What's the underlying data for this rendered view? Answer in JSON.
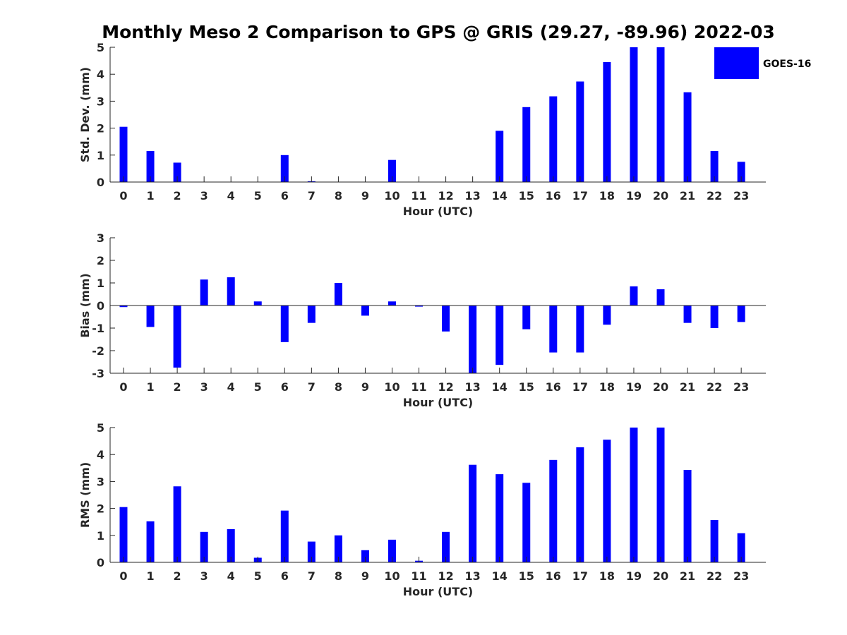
{
  "chart_data": {
    "title": "Monthly Meso 2 Comparison to GPS @ GRIS (29.27, -89.96) 2022-03",
    "type": "bar",
    "legend": {
      "label": "GOES-16",
      "placement": "top-right",
      "color": "#0000ff"
    },
    "bar_color": "#0000ff",
    "panels": [
      {
        "name": "std-dev",
        "type": "bar",
        "xlabel": "Hour (UTC)",
        "ylabel": "Std. Dev. (mm)",
        "ylim": [
          0,
          5
        ],
        "yticks": [
          0,
          1,
          2,
          3,
          4,
          5
        ],
        "categories": [
          "0",
          "1",
          "2",
          "3",
          "4",
          "5",
          "6",
          "7",
          "8",
          "9",
          "10",
          "11",
          "12",
          "13",
          "14",
          "15",
          "16",
          "17",
          "18",
          "19",
          "20",
          "21",
          "22",
          "23"
        ],
        "values": [
          2.05,
          1.15,
          0.72,
          0,
          0,
          0,
          1.0,
          0.03,
          0,
          0,
          0.82,
          0,
          0,
          0,
          1.9,
          2.78,
          3.18,
          3.73,
          4.45,
          5.0,
          5.0,
          3.33,
          1.15,
          0.75
        ],
        "legend": true
      },
      {
        "name": "bias",
        "type": "bar",
        "xlabel": "Hour (UTC)",
        "ylabel": "Bias (mm)",
        "ylim": [
          -3,
          3
        ],
        "yticks": [
          -3,
          -2,
          -1,
          0,
          1,
          2,
          3
        ],
        "categories": [
          "0",
          "1",
          "2",
          "3",
          "4",
          "5",
          "6",
          "7",
          "8",
          "9",
          "10",
          "11",
          "12",
          "13",
          "14",
          "15",
          "16",
          "17",
          "18",
          "19",
          "20",
          "21",
          "22",
          "23"
        ],
        "values": [
          -0.07,
          -0.95,
          -2.75,
          1.15,
          1.25,
          0.18,
          -1.62,
          -0.77,
          1.0,
          -0.45,
          0.18,
          -0.05,
          -1.15,
          -3.0,
          -2.63,
          -1.05,
          -2.08,
          -2.08,
          -0.85,
          0.85,
          0.72,
          -0.77,
          -1.0,
          -0.73
        ],
        "legend": false
      },
      {
        "name": "rms",
        "type": "bar",
        "xlabel": "Hour (UTC)",
        "ylabel": "RMS (mm)",
        "ylim": [
          0,
          5
        ],
        "yticks": [
          0,
          1,
          2,
          3,
          4,
          5
        ],
        "categories": [
          "0",
          "1",
          "2",
          "3",
          "4",
          "5",
          "6",
          "7",
          "8",
          "9",
          "10",
          "11",
          "12",
          "13",
          "14",
          "15",
          "16",
          "17",
          "18",
          "19",
          "20",
          "21",
          "22",
          "23"
        ],
        "values": [
          2.05,
          1.52,
          2.82,
          1.13,
          1.23,
          0.17,
          1.92,
          0.77,
          1.0,
          0.45,
          0.84,
          0.06,
          1.13,
          3.62,
          3.27,
          2.95,
          3.8,
          4.27,
          4.55,
          5.0,
          5.0,
          3.43,
          1.57,
          1.08
        ],
        "legend": false
      }
    ]
  }
}
